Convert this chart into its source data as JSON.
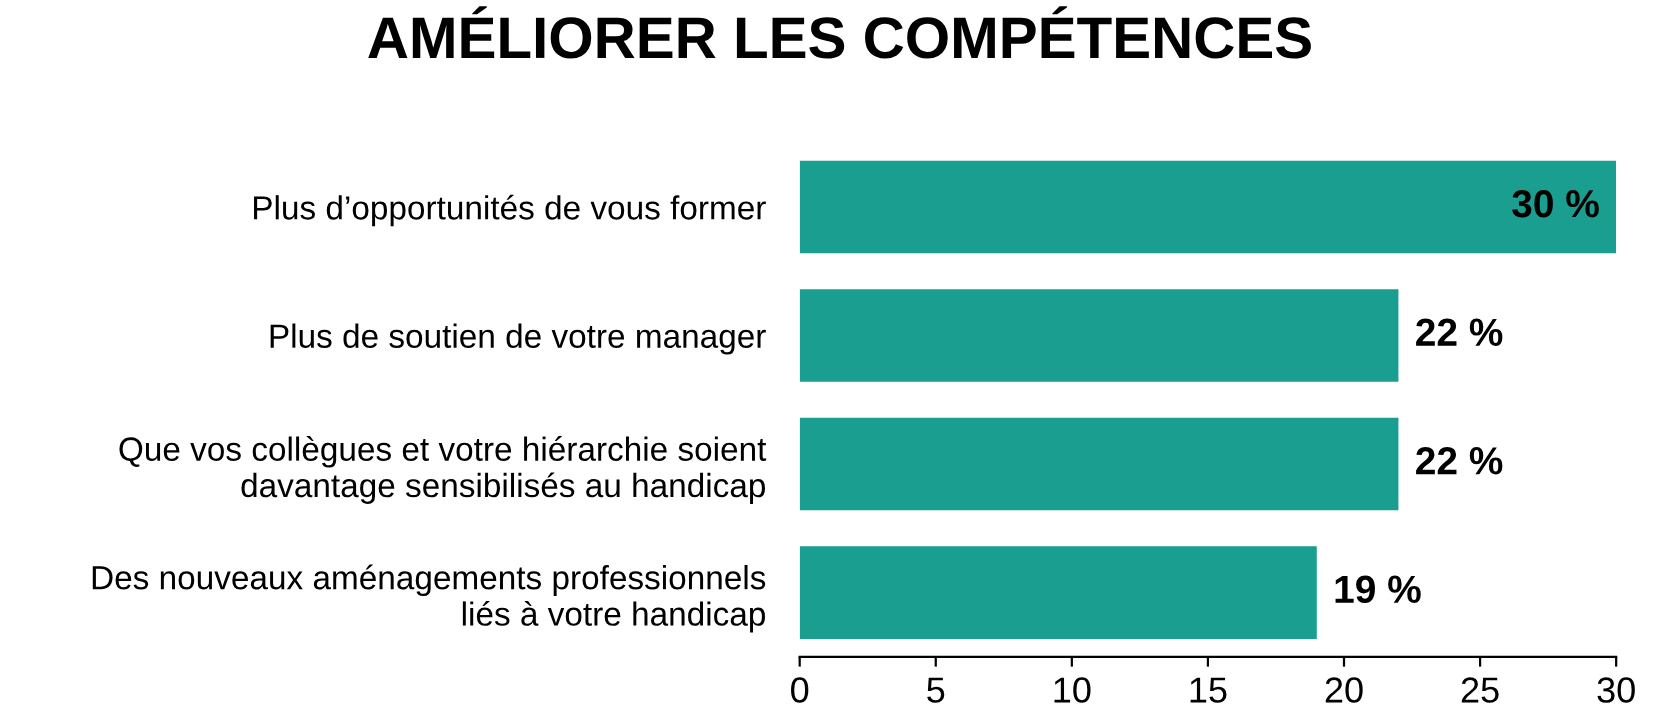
{
  "chart_data": {
    "type": "bar",
    "orientation": "horizontal",
    "title": "AMÉLIORER LES COMPÉTENCES",
    "categories": [
      "Plus d’opportunités de vous former",
      "Plus de soutien de votre manager",
      "Que vos collègues et votre hiérarchie soient\ndavantage sensibilisés au handicap",
      "Des nouveaux aménagements professionnels\nliés à votre handicap"
    ],
    "values": [
      30,
      22,
      22,
      19
    ],
    "value_labels": [
      "30 %",
      "22 %",
      "22 %",
      "19 %"
    ],
    "color": "#1a9e8f",
    "xlim": [
      0,
      30
    ],
    "xticks": [
      0,
      5,
      10,
      15,
      20,
      25,
      30
    ],
    "grid": false
  }
}
